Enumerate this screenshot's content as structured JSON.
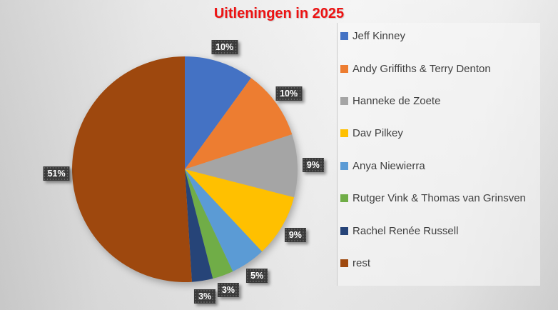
{
  "chart_data": {
    "type": "pie",
    "title": "Uitleningen in 2025",
    "title_color": "#ed1212",
    "categories": [
      "Jeff Kinney",
      "Andy Griffiths & Terry Denton",
      "Hanneke de Zoete",
      "Dav Pilkey",
      "Anya Niewierra",
      "Rutger Vink & Thomas van Grinsven",
      "Rachel Renée Russell",
      "rest"
    ],
    "values": [
      10,
      10,
      9,
      9,
      5,
      3,
      3,
      51
    ],
    "value_labels": [
      "10%",
      "10%",
      "9%",
      "9%",
      "5%",
      "3%",
      "3%",
      "51%"
    ],
    "colors": [
      "#4472c4",
      "#ed7d31",
      "#a5a5a5",
      "#ffc000",
      "#5b9bd5",
      "#70ad47",
      "#264478",
      "#9e480e"
    ],
    "start_angle_deg": 0,
    "direction": "clockwise",
    "legend_position": "right",
    "data_label_background": "#3a3a3a",
    "data_label_text_color": "#ffffff",
    "legend_text_color": "#3f3f3f"
  }
}
